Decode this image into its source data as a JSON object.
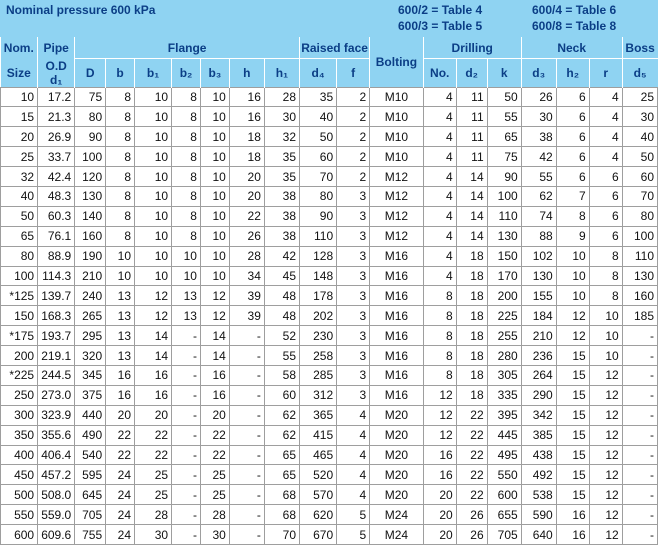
{
  "header": {
    "pressure": "Nominal pressure 600 kPa",
    "tables": [
      "600/2 = Table 4",
      "600/3 = Table 5",
      "600/4 = Table 6",
      "600/8 = Table 8"
    ]
  },
  "columns": {
    "nom": "Nom.",
    "size": "Size",
    "pipe": "Pipe",
    "od": "O.D",
    "flange": "Flange",
    "raised": "Raised face",
    "bolting": "Bolting",
    "drilling": "Drilling",
    "neck": "Neck",
    "boss": "Boss",
    "sub": [
      "d₁",
      "D",
      "b",
      "b₁",
      "b₂",
      "b₃",
      "h",
      "h₁",
      "d₄",
      "f",
      "No.",
      "d₂",
      "k",
      "d₃",
      "h₂",
      "r",
      "d₅"
    ]
  },
  "rows": [
    [
      "10",
      "17.2",
      "75",
      "8",
      "10",
      "8",
      "10",
      "16",
      "28",
      "35",
      "2",
      "M10",
      "4",
      "11",
      "50",
      "26",
      "6",
      "4",
      "25"
    ],
    [
      "15",
      "21.3",
      "80",
      "8",
      "10",
      "8",
      "10",
      "16",
      "30",
      "40",
      "2",
      "M10",
      "4",
      "11",
      "55",
      "30",
      "6",
      "4",
      "30"
    ],
    [
      "20",
      "26.9",
      "90",
      "8",
      "10",
      "8",
      "10",
      "18",
      "32",
      "50",
      "2",
      "M10",
      "4",
      "11",
      "65",
      "38",
      "6",
      "4",
      "40"
    ],
    [
      "25",
      "33.7",
      "100",
      "8",
      "10",
      "8",
      "10",
      "18",
      "35",
      "60",
      "2",
      "M10",
      "4",
      "11",
      "75",
      "42",
      "6",
      "4",
      "50"
    ],
    [
      "32",
      "42.4",
      "120",
      "8",
      "10",
      "8",
      "10",
      "20",
      "35",
      "70",
      "2",
      "M12",
      "4",
      "14",
      "90",
      "55",
      "6",
      "6",
      "60"
    ],
    [
      "40",
      "48.3",
      "130",
      "8",
      "10",
      "8",
      "10",
      "20",
      "38",
      "80",
      "3",
      "M12",
      "4",
      "14",
      "100",
      "62",
      "7",
      "6",
      "70"
    ],
    [
      "50",
      "60.3",
      "140",
      "8",
      "10",
      "8",
      "10",
      "22",
      "38",
      "90",
      "3",
      "M12",
      "4",
      "14",
      "110",
      "74",
      "8",
      "6",
      "80"
    ],
    [
      "65",
      "76.1",
      "160",
      "8",
      "10",
      "8",
      "10",
      "26",
      "38",
      "110",
      "3",
      "M12",
      "4",
      "14",
      "130",
      "88",
      "9",
      "6",
      "100"
    ],
    [
      "80",
      "88.9",
      "190",
      "10",
      "10",
      "10",
      "10",
      "28",
      "42",
      "128",
      "3",
      "M16",
      "4",
      "18",
      "150",
      "102",
      "10",
      "8",
      "110"
    ],
    [
      "100",
      "114.3",
      "210",
      "10",
      "10",
      "10",
      "10",
      "34",
      "45",
      "148",
      "3",
      "M16",
      "4",
      "18",
      "170",
      "130",
      "10",
      "8",
      "130"
    ],
    [
      "*125",
      "139.7",
      "240",
      "13",
      "12",
      "13",
      "12",
      "39",
      "48",
      "178",
      "3",
      "M16",
      "8",
      "18",
      "200",
      "155",
      "10",
      "8",
      "160"
    ],
    [
      "150",
      "168.3",
      "265",
      "13",
      "12",
      "13",
      "12",
      "39",
      "48",
      "202",
      "3",
      "M16",
      "8",
      "18",
      "225",
      "184",
      "12",
      "10",
      "185"
    ],
    [
      "*175",
      "193.7",
      "295",
      "13",
      "14",
      "-",
      "14",
      "-",
      "52",
      "230",
      "3",
      "M16",
      "8",
      "18",
      "255",
      "210",
      "12",
      "10",
      "-"
    ],
    [
      "200",
      "219.1",
      "320",
      "13",
      "14",
      "-",
      "14",
      "-",
      "55",
      "258",
      "3",
      "M16",
      "8",
      "18",
      "280",
      "236",
      "15",
      "10",
      "-"
    ],
    [
      "*225",
      "244.5",
      "345",
      "16",
      "16",
      "-",
      "16",
      "-",
      "58",
      "285",
      "3",
      "M16",
      "8",
      "18",
      "305",
      "264",
      "15",
      "12",
      "-"
    ],
    [
      "250",
      "273.0",
      "375",
      "16",
      "16",
      "-",
      "16",
      "-",
      "60",
      "312",
      "3",
      "M16",
      "12",
      "18",
      "335",
      "290",
      "15",
      "12",
      "-"
    ],
    [
      "300",
      "323.9",
      "440",
      "20",
      "20",
      "-",
      "20",
      "-",
      "62",
      "365",
      "4",
      "M20",
      "12",
      "22",
      "395",
      "342",
      "15",
      "12",
      "-"
    ],
    [
      "350",
      "355.6",
      "490",
      "22",
      "22",
      "-",
      "22",
      "-",
      "62",
      "415",
      "4",
      "M20",
      "12",
      "22",
      "445",
      "385",
      "15",
      "12",
      "-"
    ],
    [
      "400",
      "406.4",
      "540",
      "22",
      "22",
      "-",
      "22",
      "-",
      "65",
      "465",
      "4",
      "M20",
      "16",
      "22",
      "495",
      "438",
      "15",
      "12",
      "-"
    ],
    [
      "450",
      "457.2",
      "595",
      "24",
      "25",
      "-",
      "25",
      "-",
      "65",
      "520",
      "4",
      "M20",
      "16",
      "22",
      "550",
      "492",
      "15",
      "12",
      "-"
    ],
    [
      "500",
      "508.0",
      "645",
      "24",
      "25",
      "-",
      "25",
      "-",
      "68",
      "570",
      "4",
      "M20",
      "20",
      "22",
      "600",
      "538",
      "15",
      "12",
      "-"
    ],
    [
      "550",
      "559.0",
      "705",
      "24",
      "28",
      "-",
      "28",
      "-",
      "68",
      "620",
      "5",
      "M24",
      "20",
      "26",
      "655",
      "590",
      "16",
      "12",
      "-"
    ],
    [
      "600",
      "609.6",
      "755",
      "24",
      "30",
      "-",
      "30",
      "-",
      "70",
      "670",
      "5",
      "M24",
      "20",
      "26",
      "705",
      "640",
      "16",
      "12",
      "-"
    ]
  ]
}
